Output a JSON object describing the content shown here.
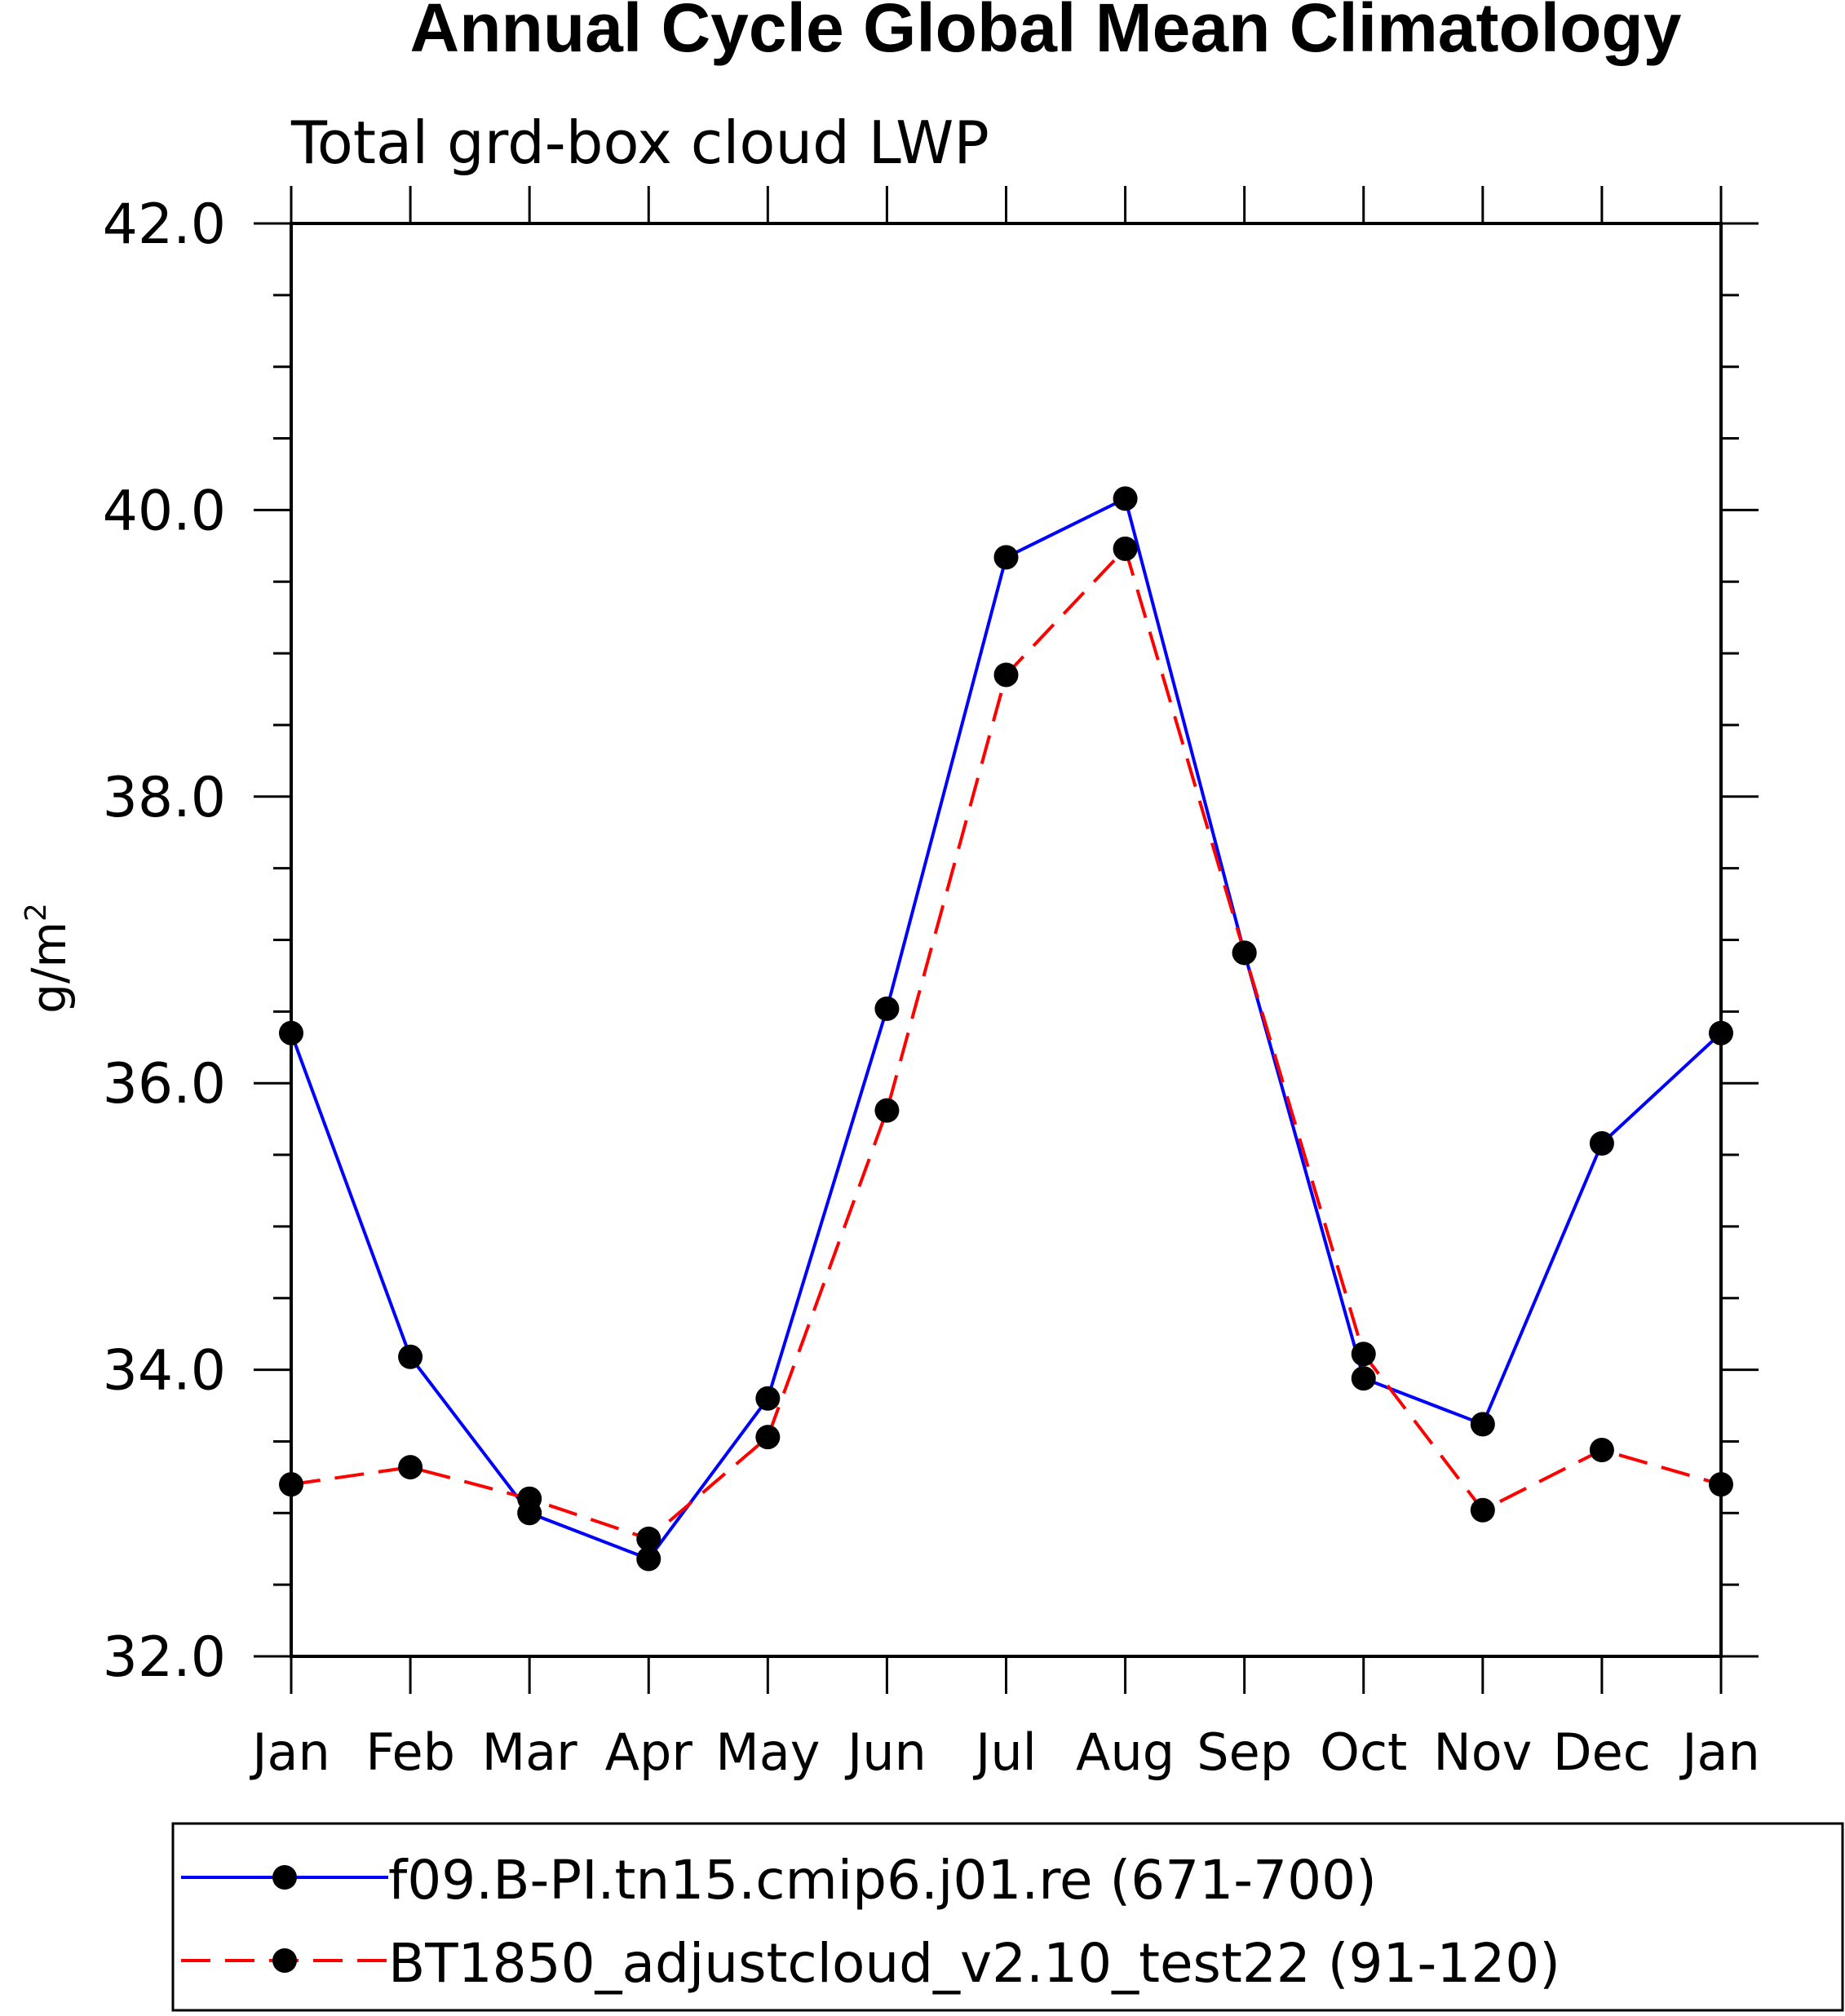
{
  "chart_data": {
    "type": "line",
    "title": "Annual Cycle Global Mean Climatology",
    "subtitle": "Total grd-box cloud LWP",
    "xlabel": "",
    "ylabel_base": "g/m",
    "ylabel_superscript": "2",
    "categories": [
      "Jan",
      "Feb",
      "Mar",
      "Apr",
      "May",
      "Jun",
      "Jul",
      "Aug",
      "Sep",
      "Oct",
      "Nov",
      "Dec",
      "Jan"
    ],
    "ylim": [
      32.0,
      42.0
    ],
    "yticks": [
      32.0,
      34.0,
      36.0,
      38.0,
      40.0,
      42.0
    ],
    "ytick_labels": [
      "32.0",
      "34.0",
      "36.0",
      "38.0",
      "40.0",
      "42.0"
    ],
    "y_minor_step": 0.5,
    "grid": false,
    "series": [
      {
        "name": "f09.B-PI.tn15.cmip6.j01.re (671-700)",
        "color": "#0000ff",
        "dash": "solid",
        "marker_color": "#000000",
        "values": [
          36.35,
          34.09,
          33.0,
          32.68,
          33.8,
          36.52,
          39.67,
          40.08,
          36.91,
          33.94,
          33.62,
          35.58,
          36.35
        ]
      },
      {
        "name": "BT1850_adjustcloud_v2.10_test22 (91-120)",
        "color": "#ff0000",
        "dash": "dashed",
        "marker_color": "#000000",
        "values": [
          33.2,
          33.32,
          33.1,
          32.82,
          33.53,
          35.81,
          38.85,
          39.73,
          36.91,
          34.11,
          33.02,
          33.44,
          33.2
        ]
      }
    ],
    "legend_position": "bottom"
  }
}
